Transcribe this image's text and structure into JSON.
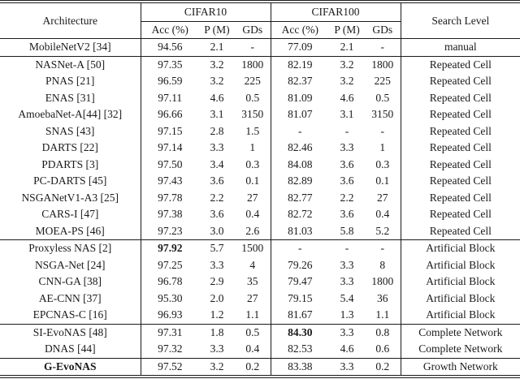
{
  "table": {
    "headers": {
      "architecture": "Architecture",
      "cifar10": "CIFAR10",
      "cifar100": "CIFAR100",
      "search_level": "Search Level",
      "sub_cifar10": [
        "Acc (%)",
        "P (M)",
        "GDs"
      ],
      "sub_cifar100": [
        "Acc (%)",
        "P (M)",
        "GDs"
      ]
    },
    "col_names": [
      "cell-architecture",
      "cell-cifar10-acc",
      "cell-cifar10-params",
      "cell-cifar10-gds",
      "cell-cifar100-acc",
      "cell-cifar100-params",
      "cell-cifar100-gds",
      "cell-search-level"
    ],
    "colors": {
      "text": "#1a1a1a",
      "rule": "#1a1a1a",
      "background": "#ffffff"
    },
    "groups": [
      {
        "name": "manual",
        "rows": [
          {
            "cells": [
              "MobileNetV2 [34]",
              "94.56",
              "2.1",
              "-",
              "77.09",
              "2.1",
              "-",
              "manual"
            ],
            "bold": []
          }
        ]
      },
      {
        "name": "repeated-cell",
        "rows": [
          {
            "cells": [
              "NASNet-A [50]",
              "97.35",
              "3.2",
              "1800",
              "82.19",
              "3.2",
              "1800",
              "Repeated Cell"
            ],
            "bold": []
          },
          {
            "cells": [
              "PNAS [21]",
              "96.59",
              "3.2",
              "225",
              "82.37",
              "3.2",
              "225",
              "Repeated Cell"
            ],
            "bold": []
          },
          {
            "cells": [
              "ENAS [31]",
              "97.11",
              "4.6",
              "0.5",
              "81.09",
              "4.6",
              "0.5",
              "Repeated Cell"
            ],
            "bold": []
          },
          {
            "cells": [
              "AmoebaNet-A[44] [32]",
              "96.66",
              "3.1",
              "3150",
              "81.07",
              "3.1",
              "3150",
              "Repeated Cell"
            ],
            "bold": []
          },
          {
            "cells": [
              "SNAS [43]",
              "97.15",
              "2.8",
              "1.5",
              "-",
              "-",
              "-",
              "Repeated Cell"
            ],
            "bold": []
          },
          {
            "cells": [
              "DARTS [22]",
              "97.14",
              "3.3",
              "1",
              "82.46",
              "3.3",
              "1",
              "Repeated Cell"
            ],
            "bold": []
          },
          {
            "cells": [
              "PDARTS [3]",
              "97.50",
              "3.4",
              "0.3",
              "84.08",
              "3.6",
              "0.3",
              "Repeated Cell"
            ],
            "bold": []
          },
          {
            "cells": [
              "PC-DARTS [45]",
              "97.43",
              "3.6",
              "0.1",
              "82.89",
              "3.6",
              "0.1",
              "Repeated Cell"
            ],
            "bold": []
          },
          {
            "cells": [
              "NSGANetV1-A3 [25]",
              "97.78",
              "2.2",
              "27",
              "82.77",
              "2.2",
              "27",
              "Repeated Cell"
            ],
            "bold": []
          },
          {
            "cells": [
              "CARS-I [47]",
              "97.38",
              "3.6",
              "0.4",
              "82.72",
              "3.6",
              "0.4",
              "Repeated Cell"
            ],
            "bold": []
          },
          {
            "cells": [
              "MOEA-PS [46]",
              "97.23",
              "3.0",
              "2.6",
              "81.03",
              "5.8",
              "5.2",
              "Repeated Cell"
            ],
            "bold": []
          }
        ]
      },
      {
        "name": "artificial-block",
        "rows": [
          {
            "cells": [
              "Proxyless NAS [2]",
              "97.92",
              "5.7",
              "1500",
              "-",
              "-",
              "-",
              "Artificial Block"
            ],
            "bold": [
              1
            ]
          },
          {
            "cells": [
              "NSGA-Net [24]",
              "97.25",
              "3.3",
              "4",
              "79.26",
              "3.3",
              "8",
              "Artificial Block"
            ],
            "bold": []
          },
          {
            "cells": [
              "CNN-GA [38]",
              "96.78",
              "2.9",
              "35",
              "79.47",
              "3.3",
              "1800",
              "Artificial Block"
            ],
            "bold": []
          },
          {
            "cells": [
              "AE-CNN [37]",
              "95.30",
              "2.0",
              "27",
              "79.15",
              "5.4",
              "36",
              "Artificial Block"
            ],
            "bold": []
          },
          {
            "cells": [
              "EPCNAS-C [16]",
              "96.93",
              "1.2",
              "1.1",
              "81.67",
              "1.3",
              "1.1",
              "Artificial Block"
            ],
            "bold": []
          }
        ]
      },
      {
        "name": "complete-network",
        "rows": [
          {
            "cells": [
              "SI-EvoNAS [48]",
              "97.31",
              "1.8",
              "0.5",
              "84.30",
              "3.3",
              "0.8",
              "Complete Network"
            ],
            "bold": [
              4
            ]
          },
          {
            "cells": [
              "DNAS [44]",
              "97.32",
              "3.3",
              "0.4",
              "82.53",
              "4.6",
              "0.6",
              "Complete Network"
            ],
            "bold": []
          }
        ]
      },
      {
        "name": "growth-network",
        "rows": [
          {
            "cells": [
              "G-EvoNAS",
              "97.52",
              "3.2",
              "0.2",
              "83.38",
              "3.3",
              "0.2",
              "Growth Network"
            ],
            "bold": [
              0
            ]
          }
        ]
      }
    ]
  }
}
